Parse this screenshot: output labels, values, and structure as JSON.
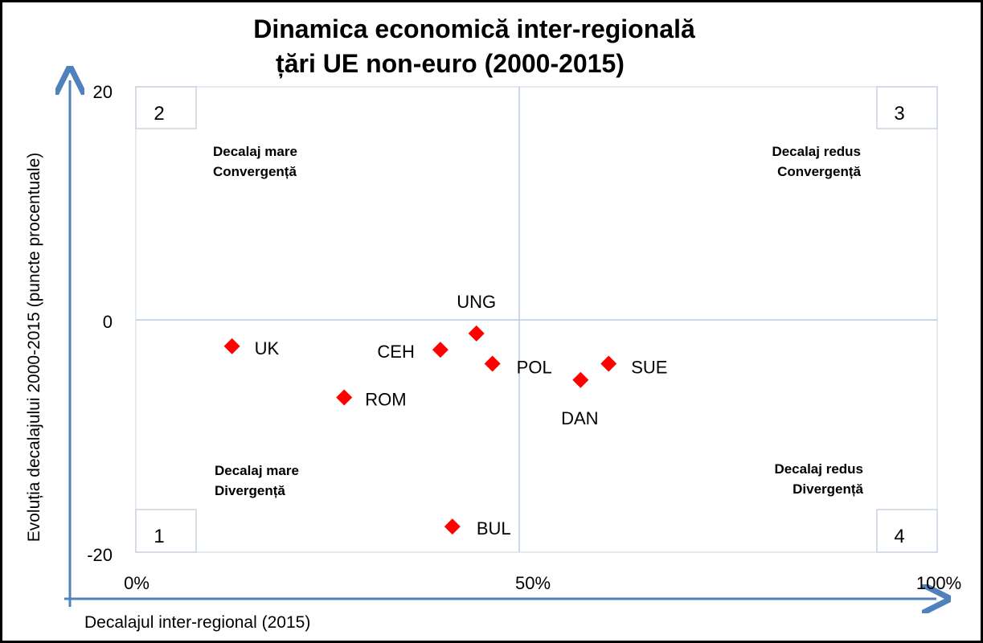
{
  "chart_data": {
    "type": "scatter",
    "title": [
      "Dinamica economică inter-regională",
      "țări UE non-euro (2000-2015)"
    ],
    "xlabel": "Decalajul inter-regional (2015)",
    "ylabel": "Evoluția decalajului 2000-2015 (puncte procentuale)",
    "xlim": [
      0,
      100
    ],
    "ylim": [
      -20,
      20
    ],
    "x_ticks": [
      {
        "value": 0,
        "label": "0%"
      },
      {
        "value": 50,
        "label": "50%"
      },
      {
        "value": 100,
        "label": "100%"
      }
    ],
    "y_ticks": [
      {
        "value": 20,
        "label": "20"
      },
      {
        "value": 0,
        "label": "0"
      },
      {
        "value": -20,
        "label": "-20"
      }
    ],
    "marker_color": "#ff0000",
    "points": [
      {
        "label": "UK",
        "x": 12,
        "y": -2.3
      },
      {
        "label": "ROM",
        "x": 26,
        "y": -6.7
      },
      {
        "label": "CEH",
        "x": 38,
        "y": -2.6
      },
      {
        "label": "UNG",
        "x": 42.5,
        "y": -1.2
      },
      {
        "label": "POL",
        "x": 44.5,
        "y": -3.8
      },
      {
        "label": "BUL",
        "x": 39.5,
        "y": -17.8
      },
      {
        "label": "DAN",
        "x": 55.5,
        "y": -5.2
      },
      {
        "label": "SUE",
        "x": 59,
        "y": -3.8
      }
    ],
    "quadrants": [
      {
        "number": "2",
        "line1": "Decalaj mare",
        "line2": "Convergență",
        "line2_color": "#000000"
      },
      {
        "number": "3",
        "line1": "Decalaj redus",
        "line2": "Convergență",
        "line2_color": "#000000"
      },
      {
        "number": "1",
        "line1": "Decalaj mare",
        "line2": "Divergență",
        "line2_color": "#ff0000"
      },
      {
        "number": "4",
        "line1": "Decalaj redus",
        "line2": "Divergență",
        "line2_color": "#ff0000"
      }
    ]
  }
}
